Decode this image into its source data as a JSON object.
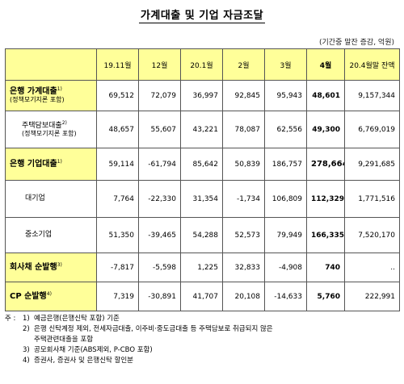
{
  "title": "가계대출 및 기업 자금조달",
  "unit": "(기간중 말잔 증감, 억원)",
  "columns": [
    "19.11월",
    "12월",
    "20.1월",
    "2월",
    "3월",
    "4월",
    "20.4월말 잔액"
  ],
  "rows": [
    {
      "label": "은행 가계대출",
      "sup": "1)",
      "sub": "(정책모기지론 포함)",
      "values": [
        "69,512",
        "72,079",
        "36,997",
        "92,845",
        "95,943",
        "48,601",
        "9,157,344"
      ]
    },
    {
      "label": "주택담보대출",
      "sup": "2)",
      "sub": "(정책모기지론 포함)",
      "values": [
        "48,657",
        "55,607",
        "43,221",
        "78,087",
        "62,556",
        "49,300",
        "6,769,019"
      ]
    },
    {
      "label": "은행 기업대출",
      "sup": "1)",
      "sub": "",
      "values": [
        "59,114",
        "-61,794",
        "85,642",
        "50,839",
        "186,757",
        "278,664",
        "9,291,685"
      ]
    },
    {
      "label": "대기업",
      "sup": "",
      "sub": "",
      "values": [
        "7,764",
        "-22,330",
        "31,354",
        "-1,734",
        "106,809",
        "112,329",
        "1,771,516"
      ]
    },
    {
      "label": "중소기업",
      "sup": "",
      "sub": "",
      "values": [
        "51,350",
        "-39,465",
        "54,288",
        "52,573",
        "79,949",
        "166,335",
        "7,520,170"
      ]
    },
    {
      "label": "회사채 순발행",
      "sup": "3)",
      "sub": "",
      "values": [
        "-7,817",
        "-5,598",
        "1,225",
        "32,833",
        "-4,908",
        "740",
        ".."
      ]
    },
    {
      "label": "CP 순발행",
      "sup": "4)",
      "sub": "",
      "values": [
        "7,319",
        "-30,891",
        "41,707",
        "20,108",
        "-14,633",
        "5,760",
        "222,991"
      ]
    }
  ],
  "notes": {
    "prefix": "주 :",
    "items": [
      {
        "num": "1)",
        "text": "예금은행(은행신탁 포함) 기준"
      },
      {
        "num": "2)",
        "text": "은행 신탁계정 제외, 전세자금대출, 이주비·중도금대출 등 주택담보로 취급되지 않은"
      },
      {
        "num": "",
        "text": "주택관련대출을 포함"
      },
      {
        "num": "3)",
        "text": "공모회사채 기준(ABS제외, P-CBO 포함)"
      },
      {
        "num": "4)",
        "text": "증권사, 증권사 및 은행신탁 할인분"
      }
    ]
  },
  "colors": {
    "highlight": "#ffff99",
    "border": "#555555"
  }
}
